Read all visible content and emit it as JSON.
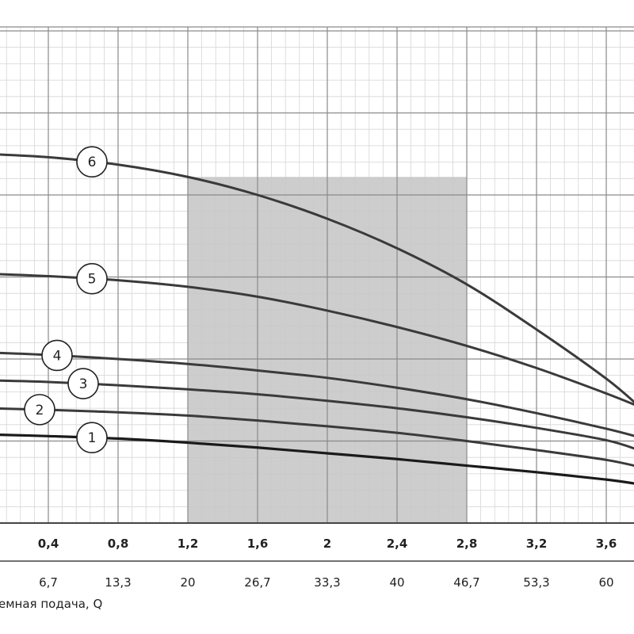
{
  "chart_data": {
    "type": "line",
    "title": "",
    "xlabel": "емная подача, Q",
    "xlim": [
      0,
      3.8
    ],
    "ylim": [
      0,
      6
    ],
    "grid": true,
    "x_ticks_top": [
      "0,4",
      "0,8",
      "1,2",
      "1,6",
      "2",
      "2,4",
      "2,8",
      "3,2",
      "3,6"
    ],
    "x_ticks_bottom": [
      "6,7",
      "13,3",
      "20",
      "26,7",
      "33,3",
      "40",
      "46,7",
      "53,3",
      "60"
    ],
    "x_tick_values": [
      0.4,
      0.8,
      1.2,
      1.6,
      2.0,
      2.4,
      2.8,
      3.2,
      3.6
    ],
    "shaded_range": [
      1.2,
      2.8
    ],
    "series": [
      {
        "name": "1",
        "x": [
          0.05,
          0.4,
          0.8,
          1.2,
          1.6,
          2.0,
          2.4,
          2.8,
          3.2,
          3.6,
          3.8
        ],
        "values": [
          1.08,
          1.06,
          1.03,
          0.98,
          0.92,
          0.85,
          0.78,
          0.7,
          0.62,
          0.53,
          0.47
        ]
      },
      {
        "name": "2",
        "x": [
          0.05,
          0.4,
          0.8,
          1.2,
          1.6,
          2.0,
          2.4,
          2.8,
          3.2,
          3.6,
          3.8
        ],
        "values": [
          1.4,
          1.38,
          1.35,
          1.31,
          1.25,
          1.18,
          1.1,
          1.0,
          0.89,
          0.77,
          0.68
        ]
      },
      {
        "name": "3",
        "x": [
          0.05,
          0.4,
          0.8,
          1.2,
          1.6,
          2.0,
          2.4,
          2.8,
          3.2,
          3.6,
          3.8
        ],
        "values": [
          1.74,
          1.72,
          1.68,
          1.63,
          1.57,
          1.49,
          1.4,
          1.29,
          1.16,
          1.01,
          0.88
        ]
      },
      {
        "name": "4",
        "x": [
          0.05,
          0.4,
          0.8,
          1.2,
          1.6,
          2.0,
          2.4,
          2.8,
          3.2,
          3.6,
          3.8
        ],
        "values": [
          2.08,
          2.05,
          2.0,
          1.94,
          1.86,
          1.77,
          1.65,
          1.51,
          1.34,
          1.15,
          1.04
        ]
      },
      {
        "name": "5",
        "x": [
          0.05,
          0.4,
          0.8,
          1.2,
          1.6,
          2.0,
          2.4,
          2.8,
          3.2,
          3.6,
          3.8
        ],
        "values": [
          3.04,
          3.01,
          2.96,
          2.88,
          2.76,
          2.59,
          2.39,
          2.16,
          1.89,
          1.58,
          1.41
        ]
      },
      {
        "name": "6",
        "x": [
          0.05,
          0.4,
          0.8,
          1.2,
          1.6,
          2.0,
          2.4,
          2.8,
          3.2,
          3.6,
          3.8
        ],
        "values": [
          4.5,
          4.46,
          4.37,
          4.22,
          4.0,
          3.71,
          3.35,
          2.91,
          2.36,
          1.76,
          1.4
        ]
      }
    ],
    "label_positions_x": [
      0.65,
      0.35,
      0.6,
      0.45,
      0.65,
      0.65
    ]
  }
}
